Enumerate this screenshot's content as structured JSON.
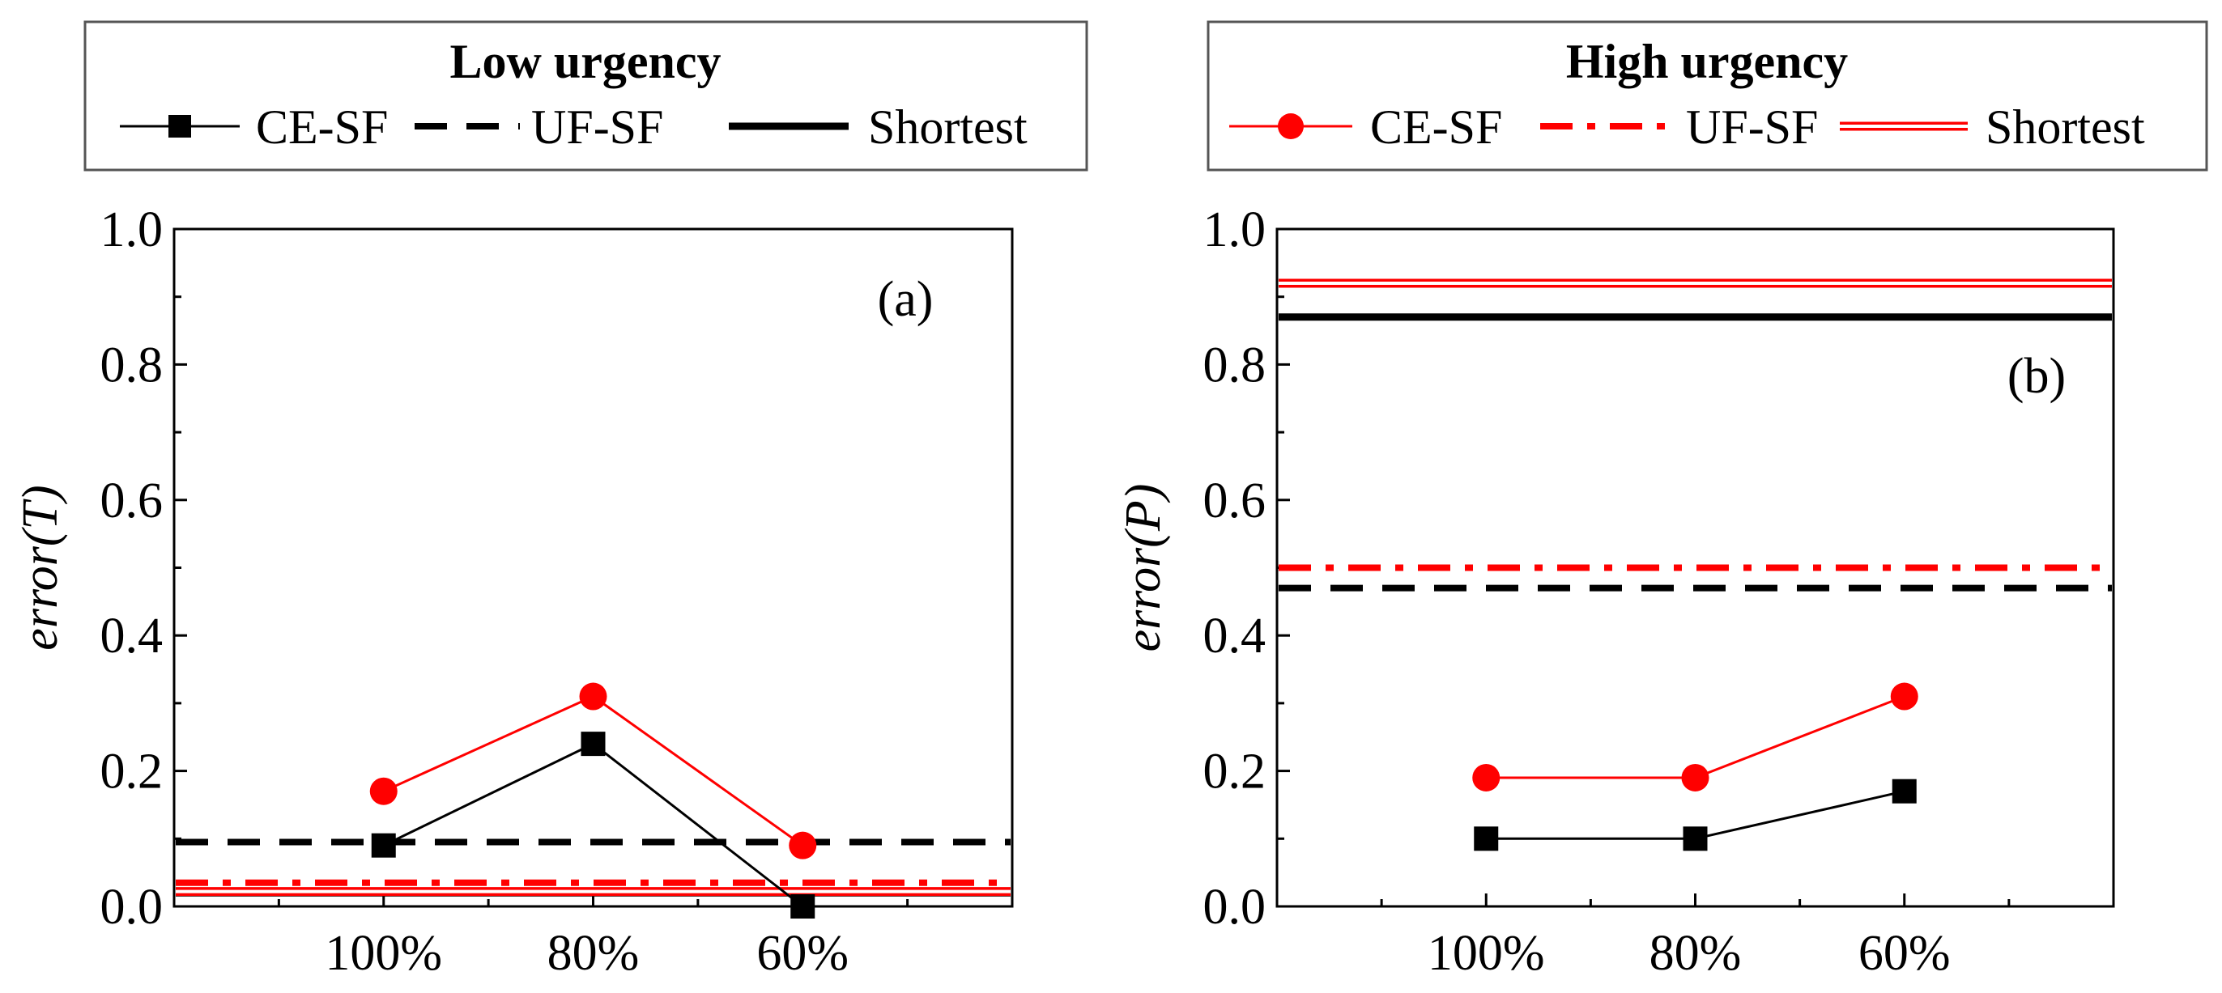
{
  "colors": {
    "black": "#000000",
    "red": "#ff0000"
  },
  "legend_low": {
    "title": "Low urgency",
    "items": [
      {
        "label": "CE-SF",
        "style": "black-square-solid"
      },
      {
        "label": "UF-SF",
        "style": "black-dashed"
      },
      {
        "label": "Shortest",
        "style": "black-thick-solid"
      }
    ]
  },
  "legend_high": {
    "title": "High urgency",
    "items": [
      {
        "label": "CE-SF",
        "style": "red-circle-solid"
      },
      {
        "label": "UF-SF",
        "style": "red-dashdot"
      },
      {
        "label": "Shortest",
        "style": "red-double"
      }
    ]
  },
  "chart_data": [
    {
      "type": "line",
      "panel_label": "(a)",
      "ylabel_prefix": "error(",
      "ylabel_var": "T",
      "ylabel_suffix": ")",
      "categories": [
        "100%",
        "80%",
        "60%"
      ],
      "ylim": [
        0.0,
        1.0
      ],
      "yticks": [
        "0.0",
        "0.2",
        "0.4",
        "0.6",
        "0.8",
        "1.0"
      ],
      "series": [
        {
          "name": "CE-SF (Low urgency)",
          "kind": "markers",
          "marker": "square",
          "color": "#000000",
          "values": [
            0.09,
            0.24,
            0.0
          ]
        },
        {
          "name": "CE-SF (High urgency)",
          "kind": "markers",
          "marker": "circle",
          "color": "#ff0000",
          "values": [
            0.17,
            0.31,
            0.09
          ]
        },
        {
          "name": "UF-SF (Low urgency)",
          "kind": "hline",
          "style": "dashed",
          "color": "#000000",
          "value": 0.095
        },
        {
          "name": "UF-SF (High urgency)",
          "kind": "hline",
          "style": "dashdot",
          "color": "#ff0000",
          "value": 0.035
        },
        {
          "name": "Shortest (Low urgency)",
          "kind": "hline",
          "style": "thick",
          "color": "#000000",
          "value": 0.02
        },
        {
          "name": "Shortest (High urgency)",
          "kind": "hline",
          "style": "double",
          "color": "#ff0000",
          "value": 0.022
        }
      ]
    },
    {
      "type": "line",
      "panel_label": "(b)",
      "ylabel_prefix": "error(",
      "ylabel_var": "P",
      "ylabel_suffix": ")",
      "categories": [
        "100%",
        "80%",
        "60%"
      ],
      "ylim": [
        0.0,
        1.0
      ],
      "yticks": [
        "0.0",
        "0.2",
        "0.4",
        "0.6",
        "0.8",
        "1.0"
      ],
      "series": [
        {
          "name": "CE-SF (Low urgency)",
          "kind": "markers",
          "marker": "square",
          "color": "#000000",
          "values": [
            0.1,
            0.1,
            0.17
          ]
        },
        {
          "name": "CE-SF (High urgency)",
          "kind": "markers",
          "marker": "circle",
          "color": "#ff0000",
          "values": [
            0.19,
            0.19,
            0.31
          ]
        },
        {
          "name": "UF-SF (Low urgency)",
          "kind": "hline",
          "style": "dashed",
          "color": "#000000",
          "value": 0.47
        },
        {
          "name": "UF-SF (High urgency)",
          "kind": "hline",
          "style": "dashdot",
          "color": "#ff0000",
          "value": 0.5
        },
        {
          "name": "Shortest (Low urgency)",
          "kind": "hline",
          "style": "thick",
          "color": "#000000",
          "value": 0.87
        },
        {
          "name": "Shortest (High urgency)",
          "kind": "hline",
          "style": "double",
          "color": "#ff0000",
          "value": 0.92
        }
      ]
    }
  ]
}
